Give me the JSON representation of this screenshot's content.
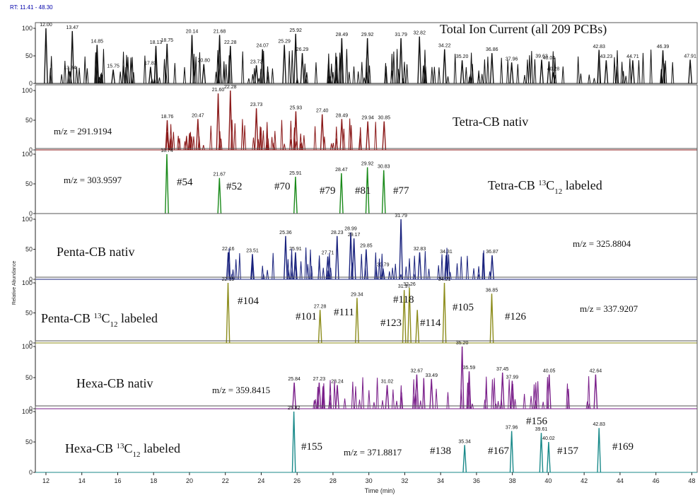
{
  "header": {
    "rt_range": "RT: 11.41 - 48.30"
  },
  "x_axis": {
    "title": "Time (min)",
    "ticks": [
      "12",
      "14",
      "16",
      "18",
      "20",
      "22",
      "24",
      "26",
      "28",
      "30",
      "32",
      "34",
      "36",
      "38",
      "40",
      "42",
      "44",
      "46",
      "48"
    ]
  },
  "y_axis_title": "Relative Abundance",
  "y_ticks": [
    "0",
    "50",
    "100"
  ],
  "chart_data": {
    "type": "line",
    "xlim": [
      11.41,
      48.3
    ],
    "ylim": [
      0,
      100
    ],
    "xlabel": "Time (min)",
    "ylabel": "Relative Abundance",
    "panels": [
      {
        "name": "Total Ion Current (all 209 PCBs)",
        "mz": "",
        "color": "#111111",
        "peaks": [
          {
            "rt": 12.0,
            "h": 100,
            "label": "12.00"
          },
          {
            "rt": 13.34,
            "h": 22,
            "label": "13.34"
          },
          {
            "rt": 13.47,
            "h": 95,
            "label": "13.47"
          },
          {
            "rt": 14.85,
            "h": 70,
            "label": "14.85"
          },
          {
            "rt": 15.75,
            "h": 25,
            "label": "15.75"
          },
          {
            "rt": 17.83,
            "h": 30,
            "label": "17.83"
          },
          {
            "rt": 18.13,
            "h": 68,
            "label": "18.13"
          },
          {
            "rt": 18.75,
            "h": 72,
            "label": "18.75"
          },
          {
            "rt": 20.14,
            "h": 88,
            "label": "20.14"
          },
          {
            "rt": 20.8,
            "h": 35,
            "label": "20.80"
          },
          {
            "rt": 21.68,
            "h": 88,
            "label": "21.68"
          },
          {
            "rt": 22.28,
            "h": 68,
            "label": "22.28"
          },
          {
            "rt": 23.73,
            "h": 33,
            "label": "23.73"
          },
          {
            "rt": 24.07,
            "h": 62,
            "label": "24.07"
          },
          {
            "rt": 25.29,
            "h": 70,
            "label": "25.29"
          },
          {
            "rt": 25.92,
            "h": 90,
            "label": "25.92"
          },
          {
            "rt": 26.29,
            "h": 55,
            "label": "26.29"
          },
          {
            "rt": 28.49,
            "h": 82,
            "label": "28.49"
          },
          {
            "rt": 29.92,
            "h": 82,
            "label": "29.92"
          },
          {
            "rt": 31.79,
            "h": 82,
            "label": "31.79"
          },
          {
            "rt": 32.82,
            "h": 85,
            "label": "32.82"
          },
          {
            "rt": 34.22,
            "h": 62,
            "label": "34.22"
          },
          {
            "rt": 35.2,
            "h": 42,
            "label": "35.20"
          },
          {
            "rt": 36.86,
            "h": 55,
            "label": "36.86"
          },
          {
            "rt": 37.96,
            "h": 38,
            "label": "37.96"
          },
          {
            "rt": 39.63,
            "h": 43,
            "label": "39.63"
          },
          {
            "rt": 40.04,
            "h": 40,
            "label": "40.04"
          },
          {
            "rt": 40.28,
            "h": 20,
            "label": "40.28"
          },
          {
            "rt": 42.83,
            "h": 60,
            "label": "42.83"
          },
          {
            "rt": 43.23,
            "h": 42,
            "label": "43.23"
          },
          {
            "rt": 44.71,
            "h": 42,
            "label": "44.71"
          },
          {
            "rt": 46.39,
            "h": 60,
            "label": "46.39"
          },
          {
            "rt": 47.91,
            "h": 43,
            "label": "47.91"
          }
        ]
      },
      {
        "name": "Tetra-CB nativ",
        "mz": "m/z = 291.9194",
        "color": "#8b1a1a",
        "peaks": [
          {
            "rt": 18.76,
            "h": 50,
            "label": "18.76"
          },
          {
            "rt": 20.47,
            "h": 52,
            "label": "20.47"
          },
          {
            "rt": 21.6,
            "h": 95,
            "label": "21.60"
          },
          {
            "rt": 22.28,
            "h": 100,
            "label": "22.28"
          },
          {
            "rt": 23.73,
            "h": 70,
            "label": "23.73"
          },
          {
            "rt": 25.93,
            "h": 65,
            "label": "25.93"
          },
          {
            "rt": 27.4,
            "h": 60,
            "label": "27.40"
          },
          {
            "rt": 28.49,
            "h": 52,
            "label": "28.49"
          },
          {
            "rt": 29.94,
            "h": 48,
            "label": "29.94"
          },
          {
            "rt": 30.85,
            "h": 48,
            "label": "30.85"
          }
        ]
      },
      {
        "name": "Tetra-CB 13C12 labeled",
        "mz": "m/z = 303.9597",
        "color": "#1a8a1a",
        "peaks": [
          {
            "rt": 18.74,
            "h": 100,
            "label": "18.74",
            "congener": "#54"
          },
          {
            "rt": 21.67,
            "h": 60,
            "label": "21.67",
            "congener": "#52"
          },
          {
            "rt": 25.91,
            "h": 62,
            "label": "25.91",
            "congener": "#70"
          },
          {
            "rt": 28.47,
            "h": 68,
            "label": "28.47",
            "congener": "#79"
          },
          {
            "rt": 29.92,
            "h": 78,
            "label": "29.92",
            "congener": "#81"
          },
          {
            "rt": 30.83,
            "h": 73,
            "label": "30.83",
            "congener": "#77"
          }
        ]
      },
      {
        "name": "Penta-CB nativ",
        "mz": "m/z = 325.8804",
        "color": "#1a237e",
        "peaks": [
          {
            "rt": 22.16,
            "h": 45,
            "label": "22.16"
          },
          {
            "rt": 23.51,
            "h": 42,
            "label": "23.51"
          },
          {
            "rt": 25.36,
            "h": 72,
            "label": "25.36"
          },
          {
            "rt": 25.91,
            "h": 45,
            "label": "25.91"
          },
          {
            "rt": 27.71,
            "h": 38,
            "label": "27.71"
          },
          {
            "rt": 28.23,
            "h": 72,
            "label": "28.23"
          },
          {
            "rt": 28.99,
            "h": 78,
            "label": "28.99"
          },
          {
            "rt": 29.17,
            "h": 68,
            "label": "29.17"
          },
          {
            "rt": 29.85,
            "h": 50,
            "label": "29.85"
          },
          {
            "rt": 30.79,
            "h": 18,
            "label": "30.79"
          },
          {
            "rt": 31.79,
            "h": 100,
            "label": "31.79"
          },
          {
            "rt": 32.83,
            "h": 45,
            "label": "32.83"
          },
          {
            "rt": 34.31,
            "h": 40,
            "label": "34.31"
          },
          {
            "rt": 36.87,
            "h": 40,
            "label": "36.87"
          }
        ]
      },
      {
        "name": "Penta-CB 13C12 labeled",
        "mz": "m/z = 337.9207",
        "color": "#8c8c1a",
        "peaks": [
          {
            "rt": 22.15,
            "h": 100,
            "label": "22.15",
            "congener": "#104"
          },
          {
            "rt": 27.28,
            "h": 55,
            "label": "27.28",
            "congener": "#101"
          },
          {
            "rt": 29.34,
            "h": 75,
            "label": "29.34",
            "congener": "#111"
          },
          {
            "rt": 31.97,
            "h": 88,
            "label": "31.97",
            "congener": "#118"
          },
          {
            "rt": 32.26,
            "h": 92,
            "label": "32.26",
            "congener": "#123"
          },
          {
            "rt": 32.7,
            "h": 55,
            "label": "",
            "congener": "#114"
          },
          {
            "rt": 34.21,
            "h": 100,
            "label": "34.21",
            "congener": "#105"
          },
          {
            "rt": 36.85,
            "h": 82,
            "label": "36.85",
            "congener": "#126"
          }
        ]
      },
      {
        "name": "Hexa-CB nativ",
        "mz": "m/z = 359.8415",
        "color": "#7a1f8a",
        "peaks": [
          {
            "rt": 25.84,
            "h": 42,
            "label": "25.84"
          },
          {
            "rt": 27.23,
            "h": 42,
            "label": "27.23"
          },
          {
            "rt": 28.24,
            "h": 38,
            "label": "28.24"
          },
          {
            "rt": 31.02,
            "h": 38,
            "label": "31.02"
          },
          {
            "rt": 32.67,
            "h": 55,
            "label": "32.67"
          },
          {
            "rt": 33.49,
            "h": 48,
            "label": "33.49"
          },
          {
            "rt": 35.2,
            "h": 100,
            "label": "35.20"
          },
          {
            "rt": 35.59,
            "h": 60,
            "label": "35.59"
          },
          {
            "rt": 37.45,
            "h": 58,
            "label": "37.45"
          },
          {
            "rt": 37.99,
            "h": 45,
            "label": "37.99"
          },
          {
            "rt": 40.05,
            "h": 55,
            "label": "40.05"
          },
          {
            "rt": 42.64,
            "h": 55,
            "label": "42.64"
          }
        ]
      },
      {
        "name": "Hexa-CB 13C12 labeled",
        "mz": "m/z = 371.8817",
        "color": "#1a8a8a",
        "peaks": [
          {
            "rt": 25.82,
            "h": 100,
            "label": "25.82",
            "congener": "#155"
          },
          {
            "rt": 35.34,
            "h": 45,
            "label": "35.34",
            "congener": "#138"
          },
          {
            "rt": 37.96,
            "h": 68,
            "label": "37.96",
            "congener": "#167"
          },
          {
            "rt": 39.61,
            "h": 65,
            "label": "39.61",
            "congener": "#156"
          },
          {
            "rt": 40.02,
            "h": 50,
            "label": "40.02",
            "congener": "#157"
          },
          {
            "rt": 42.83,
            "h": 73,
            "label": "42.83",
            "congener": "#169"
          }
        ]
      }
    ]
  }
}
